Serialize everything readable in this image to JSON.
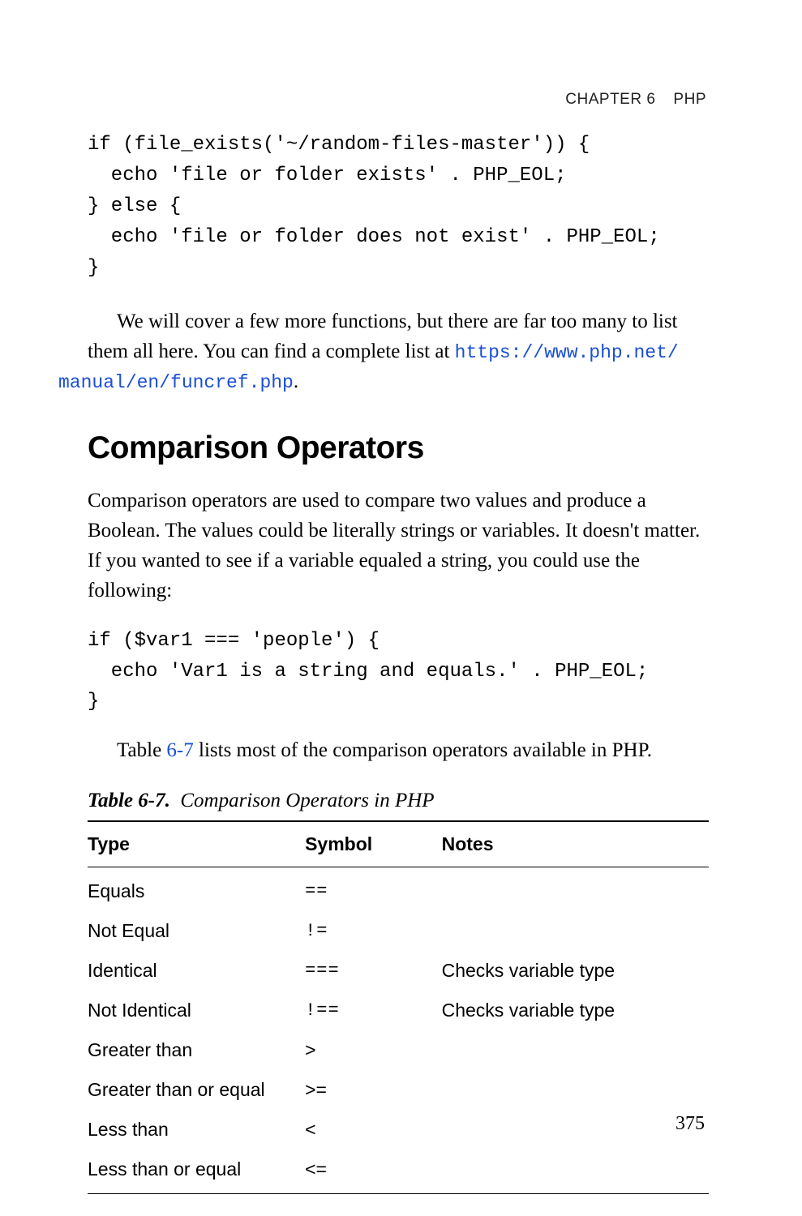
{
  "header": {
    "chapter_label": "CHAPTER 6",
    "chapter_title": "PHP"
  },
  "code1": "if (file_exists('~/random-files-master')) {\n  echo 'file or folder exists' . PHP_EOL;\n} else {\n  echo 'file or folder does not exist' . PHP_EOL;\n}",
  "para1_a": "We will cover a few more functions, but there are far too many to list them all here. You can find a complete list at ",
  "para1_link1": "https://www.php.net/",
  "para1_link2": "manual/en/funcref.php",
  "para1_b": ".",
  "section_heading": "Comparison Operators",
  "para2": "Comparison operators are used to compare two values and produce a Boolean. The values could be literally strings or variables. It doesn't matter. If you wanted to see if a variable equaled a string, you could use the following:",
  "code2": "if ($var1 === 'people') {\n  echo 'Var1 is a string and equals.' . PHP_EOL;\n}",
  "para3_a": "Table ",
  "para3_ref": "6-7",
  "para3_b": " lists most of the comparison operators available in PHP.",
  "table": {
    "label": "Table 6-7.",
    "caption": "Comparison Operators in PHP",
    "columns": [
      "Type",
      "Symbol",
      "Notes"
    ],
    "rows": [
      {
        "type": "Equals",
        "symbol": "==",
        "sym_style": "mono",
        "notes": ""
      },
      {
        "type": "Not Equal",
        "symbol": "!=",
        "sym_style": "mono",
        "notes": ""
      },
      {
        "type": "Identical",
        "symbol": "===",
        "sym_style": "mono",
        "notes": "Checks variable type"
      },
      {
        "type": "Not Identical",
        "symbol": "!==",
        "sym_style": "mono",
        "notes": "Checks variable type"
      },
      {
        "type": "Greater than",
        "symbol": ">",
        "sym_style": "bold",
        "notes": ""
      },
      {
        "type": "Greater than or equal",
        "symbol": ">=",
        "sym_style": "bold",
        "notes": ""
      },
      {
        "type": "Less than",
        "symbol": "<",
        "sym_style": "bold",
        "notes": ""
      },
      {
        "type": "Less than or equal",
        "symbol": "<=",
        "sym_style": "bold",
        "notes": ""
      }
    ]
  },
  "page_number": "375",
  "colors": {
    "link": "#1a4fd6",
    "text": "#000000",
    "background": "#ffffff",
    "rule": "#000000"
  },
  "fontsizes": {
    "running_head": 19,
    "code": 24,
    "body": 25,
    "h2": 39,
    "table": 23,
    "pagenum": 24
  }
}
